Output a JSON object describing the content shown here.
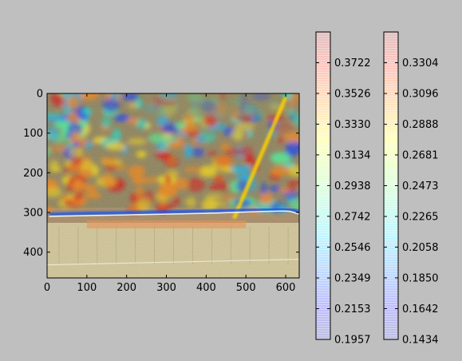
{
  "chart_data": [
    {
      "type": "heatmap",
      "title": "",
      "xlabel": "",
      "ylabel": "",
      "xlim": [
        0,
        634
      ],
      "ylim": [
        465,
        0
      ],
      "xticks": [
        0,
        100,
        200,
        300,
        400,
        500,
        600
      ],
      "yticks": [
        0,
        100,
        200,
        300,
        400
      ],
      "grid": false,
      "background": "aerial photograph of a concrete dam with a semi-transparent jet-colormap strain field overlay",
      "overlay_extent": {
        "x": [
          0,
          634
        ],
        "y": [
          0,
          340
        ]
      },
      "dam_crest_y": 310,
      "pavement_region_y": [
        325,
        465
      ]
    },
    {
      "type": "colorbar",
      "colormap": "jet",
      "alpha": 0.25,
      "ticks": [
        "0.3722",
        "0.3526",
        "0.3330",
        "0.3134",
        "0.2938",
        "0.2742",
        "0.2546",
        "0.2349",
        "0.2153",
        "0.1957"
      ],
      "range": [
        0.1957,
        0.3918
      ]
    },
    {
      "type": "colorbar",
      "colormap": "jet",
      "alpha": 0.25,
      "ticks": [
        "0.3304",
        "0.3096",
        "0.2888",
        "0.2681",
        "0.2473",
        "0.2265",
        "0.2058",
        "0.1850",
        "0.1642",
        "0.1434"
      ],
      "range": [
        0.1434,
        0.3512
      ]
    }
  ]
}
